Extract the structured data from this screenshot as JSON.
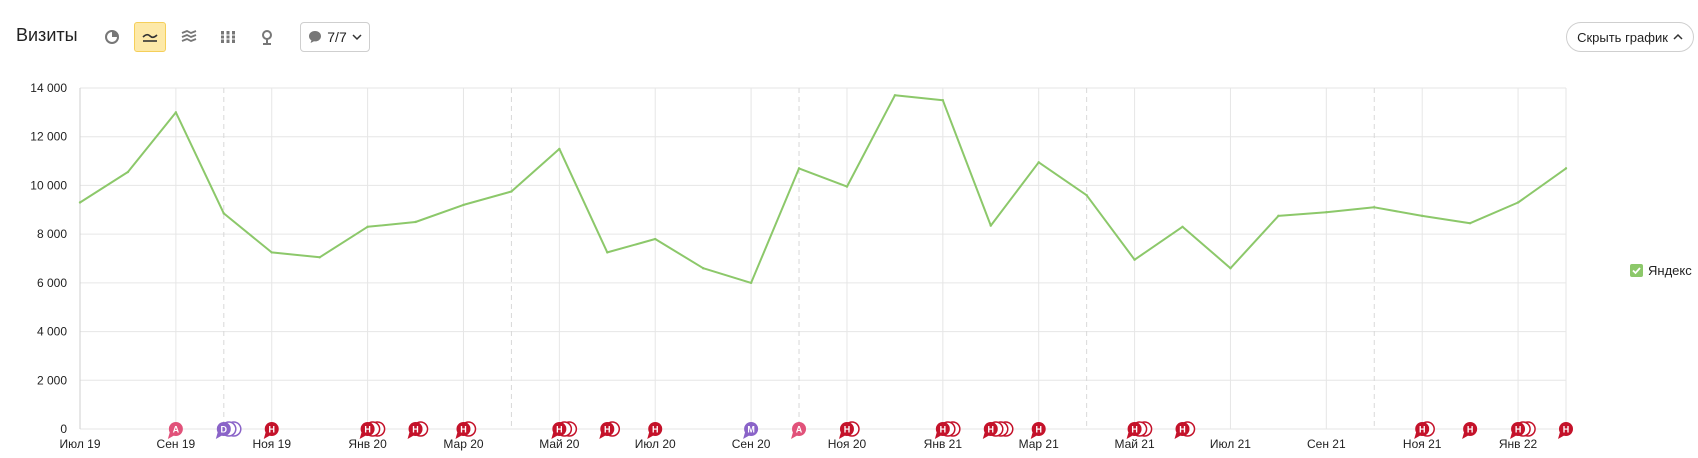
{
  "header": {
    "title": "Визиты",
    "notes_label": "7/7",
    "hide_chart_label": "Скрыть график"
  },
  "toolbar": {
    "buttons": [
      {
        "icon": "pie-chart-icon",
        "active": false
      },
      {
        "icon": "line-chart-icon",
        "active": true
      },
      {
        "icon": "area-chart-icon",
        "active": false
      },
      {
        "icon": "bar-chart-icon",
        "active": false
      },
      {
        "icon": "map-pin-icon",
        "active": false
      }
    ]
  },
  "colors": {
    "series": "#8cc86a",
    "note_red": "#c4122a",
    "note_pink": "#e1527a",
    "note_purple": "#8a63c8",
    "grid": "#e6e6e6",
    "active_button": "#fde9a8"
  },
  "chart_data": {
    "type": "line",
    "ylim": [
      0,
      14000
    ],
    "y_ticks": [
      0,
      2000,
      4000,
      6000,
      8000,
      10000,
      12000,
      14000
    ],
    "y_tick_labels": [
      "0",
      "2 000",
      "4 000",
      "6 000",
      "8 000",
      "10 000",
      "12 000",
      "14 000"
    ],
    "x": [
      "2019-07",
      "2019-08",
      "2019-09",
      "2019-10",
      "2019-11",
      "2019-12",
      "2020-01",
      "2020-02",
      "2020-03",
      "2020-04",
      "2020-05",
      "2020-06",
      "2020-07",
      "2020-08",
      "2020-09",
      "2020-10",
      "2020-11",
      "2020-12",
      "2021-01",
      "2021-02",
      "2021-03",
      "2021-04",
      "2021-05",
      "2021-06",
      "2021-07",
      "2021-08",
      "2021-09",
      "2021-10",
      "2021-11",
      "2021-12",
      "2022-01",
      "2022-02"
    ],
    "x_tick_labels": [
      "Июл 19",
      "Сен 19",
      "Ноя 19",
      "Янв 20",
      "Мар 20",
      "Май 20",
      "Июл 20",
      "Сен 20",
      "Ноя 20",
      "Янв 21",
      "Мар 21",
      "Май 21",
      "Июл 21",
      "Сен 21",
      "Ноя 21",
      "Янв 22"
    ],
    "grid": true,
    "legend_position": "right",
    "series": [
      {
        "name": "Яндекс",
        "values": [
          9300,
          10550,
          13000,
          8850,
          7250,
          7050,
          8300,
          8500,
          9200,
          9750,
          11500,
          7250,
          7800,
          6600,
          6000,
          10700,
          9950,
          13700,
          13500,
          8350,
          10950,
          9600,
          6950,
          8300,
          6600,
          8750,
          8900,
          9100,
          8750,
          8450,
          9300,
          10700
        ]
      }
    ],
    "notes": [
      {
        "label": "A",
        "count": 1,
        "color": "pink",
        "month": 2
      },
      {
        "label": "D",
        "count": 3,
        "color": "purple",
        "month": 3.0
      },
      {
        "label": "Н",
        "count": 1,
        "color": "red",
        "month": 4
      },
      {
        "label": "Н",
        "count": 3,
        "color": "red",
        "month": 6
      },
      {
        "label": "Н",
        "count": 2,
        "color": "red",
        "month": 7
      },
      {
        "label": "Н",
        "count": 2,
        "color": "red",
        "month": 8
      },
      {
        "label": "Н",
        "count": 3,
        "color": "red",
        "month": 10
      },
      {
        "label": "Н",
        "count": 2,
        "color": "red",
        "month": 11
      },
      {
        "label": "Н",
        "count": 1,
        "color": "red",
        "month": 12
      },
      {
        "label": "М",
        "count": 1,
        "color": "purple",
        "month": 14
      },
      {
        "label": "A",
        "count": 1,
        "color": "pink",
        "month": 15
      },
      {
        "label": "Н",
        "count": 2,
        "color": "red",
        "month": 16
      },
      {
        "label": "Н",
        "count": 3,
        "color": "red",
        "month": 18
      },
      {
        "label": "Н",
        "count": 4,
        "color": "red",
        "month": 19
      },
      {
        "label": "Н",
        "count": 1,
        "color": "red",
        "month": 20
      },
      {
        "label": "Н",
        "count": 3,
        "color": "red",
        "month": 22
      },
      {
        "label": "Н",
        "count": 2,
        "color": "red",
        "month": 23
      },
      {
        "label": "Н",
        "count": 2,
        "color": "red",
        "month": 28
      },
      {
        "label": "Н",
        "count": 1,
        "color": "red",
        "month": 29
      },
      {
        "label": "Н",
        "count": 3,
        "color": "red",
        "month": 30
      },
      {
        "label": "Н",
        "count": 1,
        "color": "red",
        "month": 31
      }
    ]
  }
}
